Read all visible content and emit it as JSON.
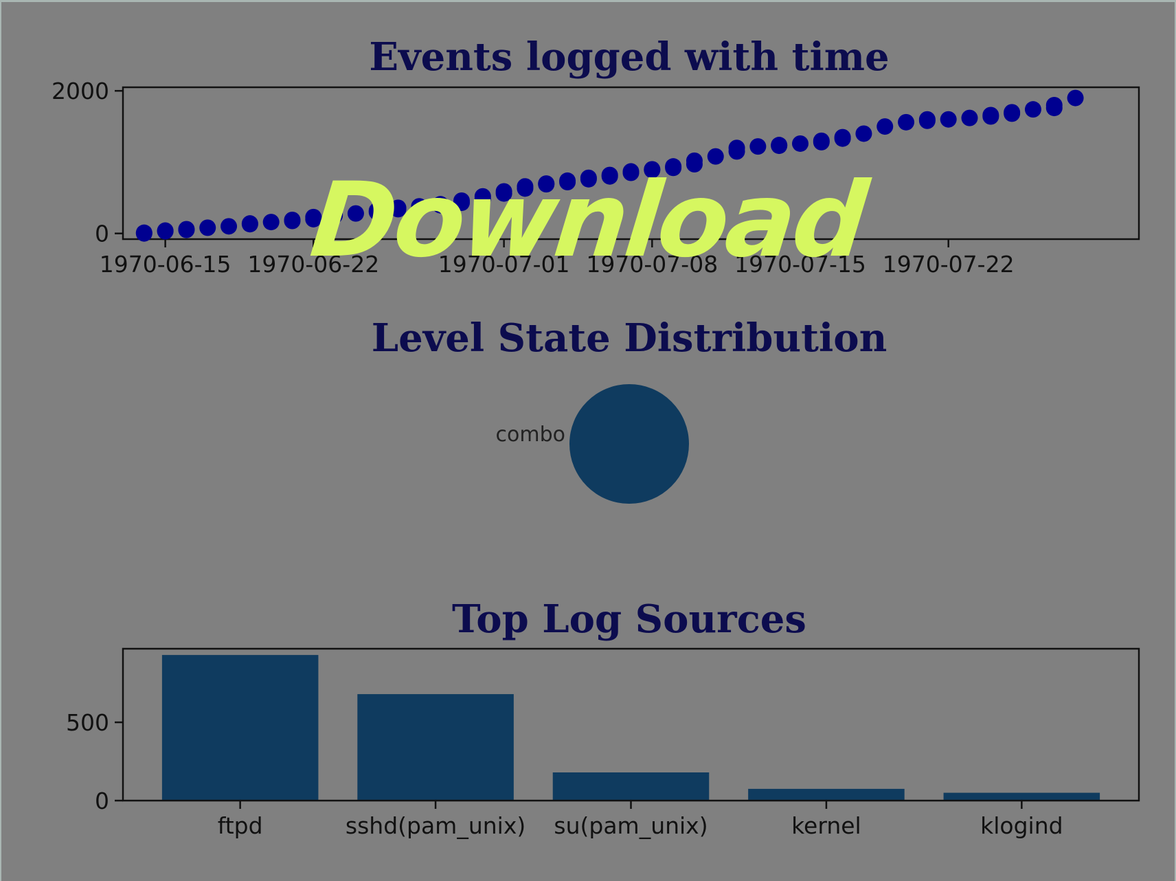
{
  "overlay": {
    "download_label": "Download"
  },
  "colors": {
    "page_border": "#a9b6b2",
    "figure_background": "#808080",
    "title_text": "#0c0c4e",
    "scatter_points": "#000090",
    "bars_and_pie": "#0f3b5f",
    "overlay_text": "#d6f760"
  },
  "chart_data": [
    {
      "type": "scatter",
      "title": "Events logged with time",
      "xlabel": "",
      "ylabel": "",
      "x_axis": "date",
      "xlim": [
        "1970-06-13",
        "1970-07-31"
      ],
      "xticks": [
        "1970-06-15",
        "1970-06-22",
        "1970-07-01",
        "1970-07-08",
        "1970-07-15",
        "1970-07-22"
      ],
      "ylim": [
        -80,
        2050
      ],
      "yticks": [
        0,
        2000
      ],
      "grid": false,
      "series": [
        {
          "x": [
            "1970-06-14",
            "1970-06-14",
            "1970-06-15",
            "1970-06-15",
            "1970-06-16",
            "1970-06-16",
            "1970-06-17",
            "1970-06-18",
            "1970-06-19",
            "1970-06-19",
            "1970-06-20",
            "1970-06-21",
            "1970-06-21",
            "1970-06-22",
            "1970-06-22",
            "1970-06-23",
            "1970-06-23",
            "1970-06-24",
            "1970-06-25",
            "1970-06-25",
            "1970-06-26",
            "1970-06-26",
            "1970-06-27",
            "1970-06-28",
            "1970-06-28",
            "1970-06-29",
            "1970-06-29",
            "1970-06-30",
            "1970-06-30",
            "1970-07-01",
            "1970-07-01",
            "1970-07-02",
            "1970-07-02",
            "1970-07-03",
            "1970-07-03",
            "1970-07-04",
            "1970-07-04",
            "1970-07-05",
            "1970-07-05",
            "1970-07-06",
            "1970-07-06",
            "1970-07-07",
            "1970-07-07",
            "1970-07-08",
            "1970-07-08",
            "1970-07-09",
            "1970-07-09",
            "1970-07-10",
            "1970-07-10",
            "1970-07-11",
            "1970-07-12",
            "1970-07-12",
            "1970-07-13",
            "1970-07-14",
            "1970-07-14",
            "1970-07-15",
            "1970-07-16",
            "1970-07-16",
            "1970-07-17",
            "1970-07-17",
            "1970-07-18",
            "1970-07-19",
            "1970-07-20",
            "1970-07-21",
            "1970-07-21",
            "1970-07-22",
            "1970-07-23",
            "1970-07-24",
            "1970-07-24",
            "1970-07-25",
            "1970-07-25",
            "1970-07-26",
            "1970-07-27",
            "1970-07-27",
            "1970-07-28"
          ],
          "y": [
            0,
            10,
            30,
            40,
            50,
            60,
            80,
            100,
            130,
            140,
            160,
            175,
            190,
            200,
            230,
            250,
            265,
            280,
            300,
            320,
            340,
            360,
            380,
            395,
            410,
            430,
            460,
            490,
            520,
            560,
            590,
            630,
            660,
            690,
            700,
            720,
            740,
            760,
            780,
            800,
            820,
            850,
            870,
            890,
            900,
            920,
            940,
            970,
            1020,
            1080,
            1150,
            1200,
            1220,
            1230,
            1240,
            1260,
            1280,
            1300,
            1330,
            1350,
            1400,
            1500,
            1560,
            1580,
            1600,
            1600,
            1620,
            1640,
            1660,
            1680,
            1700,
            1740,
            1760,
            1800,
            1900
          ]
        }
      ]
    },
    {
      "type": "pie",
      "title": "Level State Distribution",
      "slices": [
        {
          "label": "combo",
          "value": 100
        }
      ]
    },
    {
      "type": "bar",
      "title": "Top Log Sources",
      "xlabel": "",
      "ylabel": "",
      "categories": [
        "ftpd",
        "sshd(pam_unix)",
        "su(pam_unix)",
        "kernel",
        "klogind"
      ],
      "values": [
        930,
        680,
        180,
        75,
        50
      ],
      "ylim": [
        0,
        970
      ],
      "yticks": [
        0,
        500
      ],
      "grid": false
    }
  ]
}
